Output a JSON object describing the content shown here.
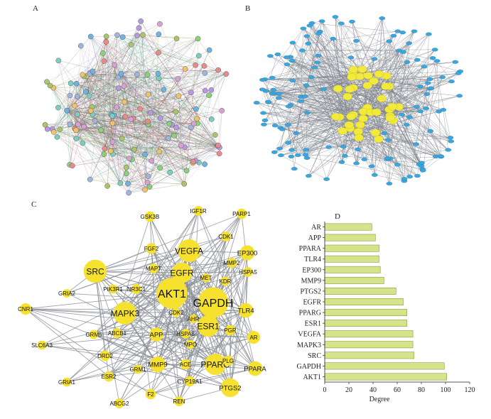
{
  "panels": {
    "a": {
      "label": "A"
    },
    "b": {
      "label": "B"
    },
    "c": {
      "label": "C"
    },
    "d": {
      "label": "D"
    }
  },
  "network_c": {
    "node_color": "#f5e12e",
    "edge_color": "#8a8f96",
    "nodes": [
      {
        "name": "GSK3B",
        "degree": 30
      },
      {
        "name": "IGF1R",
        "degree": 28
      },
      {
        "name": "PARP1",
        "degree": 30
      },
      {
        "name": "CDK1",
        "degree": 28
      },
      {
        "name": "FGF2",
        "degree": 32
      },
      {
        "name": "VEGFA",
        "degree": 73
      },
      {
        "name": "EP300",
        "degree": 46
      },
      {
        "name": "MAPT",
        "degree": 28
      },
      {
        "name": "MMP2",
        "degree": 30
      },
      {
        "name": "HSPA5",
        "degree": 28
      },
      {
        "name": "SRC",
        "degree": 74
      },
      {
        "name": "EGFR",
        "degree": 65
      },
      {
        "name": "MET",
        "degree": 24
      },
      {
        "name": "KDR",
        "degree": 26
      },
      {
        "name": "PIK3R1",
        "degree": 26
      },
      {
        "name": "NR3C1",
        "degree": 28
      },
      {
        "name": "GRIA2",
        "degree": 24
      },
      {
        "name": "AKT1",
        "degree": 101
      },
      {
        "name": "GAPDH",
        "degree": 99
      },
      {
        "name": "CNR1",
        "degree": 34
      },
      {
        "name": "CDK2",
        "degree": 26
      },
      {
        "name": "AHR",
        "degree": 24
      },
      {
        "name": "TLR4",
        "degree": 45
      },
      {
        "name": "MAPK3",
        "degree": 73
      },
      {
        "name": "GRM5",
        "degree": 26
      },
      {
        "name": "ABCB1",
        "degree": 28
      },
      {
        "name": "APP",
        "degree": 42
      },
      {
        "name": "HSPA8",
        "degree": 28
      },
      {
        "name": "ESR1",
        "degree": 68
      },
      {
        "name": "PGR",
        "degree": 30
      },
      {
        "name": "AR",
        "degree": 39
      },
      {
        "name": "SLC6A3",
        "degree": 26
      },
      {
        "name": "DRD2",
        "degree": 30
      },
      {
        "name": "MPO",
        "degree": 26
      },
      {
        "name": "MMP9",
        "degree": 49
      },
      {
        "name": "ACE",
        "degree": 30
      },
      {
        "name": "PPARG",
        "degree": 68
      },
      {
        "name": "PLG",
        "degree": 30
      },
      {
        "name": "PPARA",
        "degree": 45
      },
      {
        "name": "ESR2",
        "degree": 30
      },
      {
        "name": "GRM1",
        "degree": 26
      },
      {
        "name": "GRIA1",
        "degree": 26
      },
      {
        "name": "CYP19A1",
        "degree": 30
      },
      {
        "name": "PTGS2",
        "degree": 59
      },
      {
        "name": "F2",
        "degree": 30
      },
      {
        "name": "REN",
        "degree": 28
      },
      {
        "name": "ABCG2",
        "degree": 28
      }
    ]
  },
  "chart_data": {
    "type": "bar",
    "orientation": "horizontal",
    "title": "D",
    "xlabel": "Degree",
    "ylabel": "",
    "xlim": [
      0,
      120
    ],
    "xticks": [
      "0",
      "20",
      "40",
      "60",
      "80",
      "100",
      "120"
    ],
    "bar_color": "#d3e48a",
    "bar_edge_color": "#7a8a2a",
    "categories": [
      "AR",
      "APP",
      "PPARA",
      "TLR4",
      "EP300",
      "MMP9",
      "PTGS2",
      "EGFR",
      "PPARG",
      "ESR1",
      "VEGFA",
      "MAPK3",
      "SRC",
      "GAPDH",
      "AKT1"
    ],
    "values": [
      39,
      42,
      45,
      45,
      46,
      49,
      59,
      65,
      68,
      68,
      73,
      73,
      74,
      99,
      101
    ]
  }
}
